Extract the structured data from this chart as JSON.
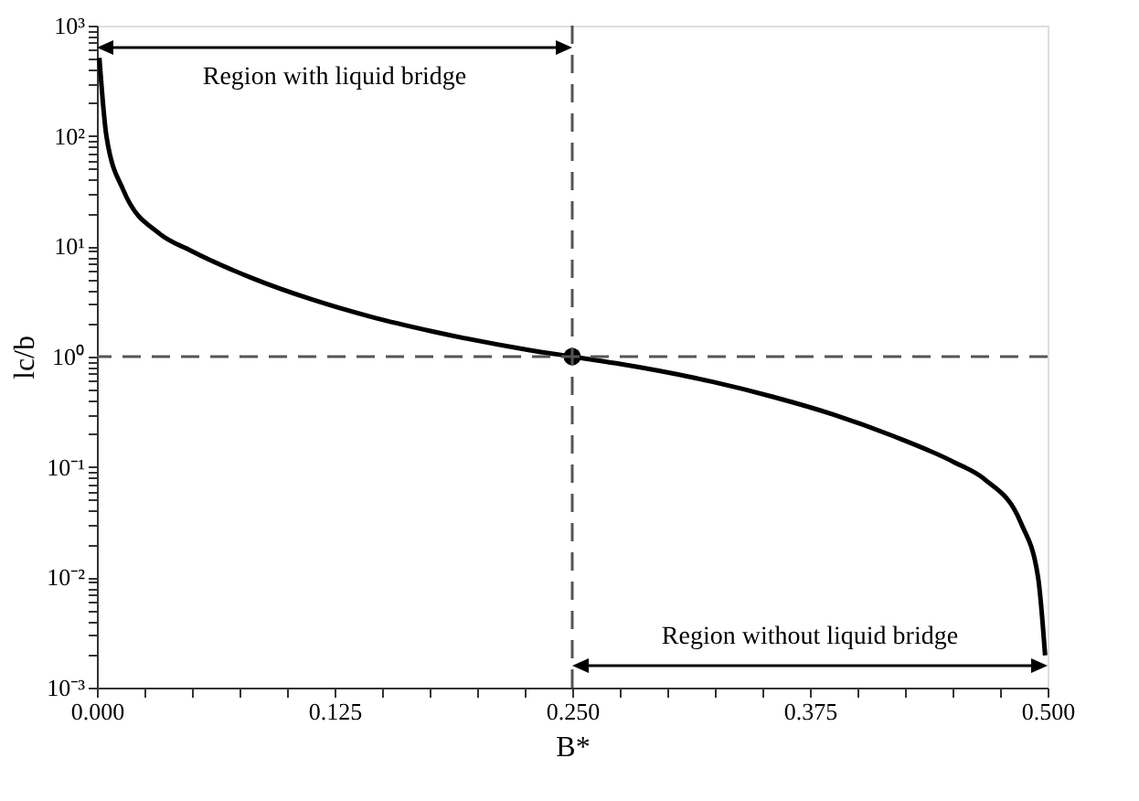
{
  "chart_data": {
    "type": "line",
    "xlabel": "B*",
    "ylabel": "lc/b",
    "log": "y",
    "grid": false,
    "xlim": [
      0,
      0.5
    ],
    "xticks": [
      {
        "value": 0,
        "label": "0.000"
      },
      {
        "value": 0.025,
        "label": null
      },
      {
        "value": 0.05,
        "label": null
      },
      {
        "value": 0.075,
        "label": null
      },
      {
        "value": 0.1,
        "label": null
      },
      {
        "value": 0.125,
        "label": "0.125"
      },
      {
        "value": 0.15,
        "label": null
      },
      {
        "value": 0.175,
        "label": null
      },
      {
        "value": 0.2,
        "label": null
      },
      {
        "value": 0.225,
        "label": null
      },
      {
        "value": 0.25,
        "label": "0.250"
      },
      {
        "value": 0.275,
        "label": null
      },
      {
        "value": 0.3,
        "label": null
      },
      {
        "value": 0.325,
        "label": null
      },
      {
        "value": 0.35,
        "label": null
      },
      {
        "value": 0.375,
        "label": "0.375"
      },
      {
        "value": 0.4,
        "label": null
      },
      {
        "value": 0.425,
        "label": null
      },
      {
        "value": 0.45,
        "label": null
      },
      {
        "value": 0.475,
        "label": null
      },
      {
        "value": 0.5,
        "label": "0.500"
      }
    ],
    "ylim": [
      0.001,
      1000
    ],
    "yticks": [
      {
        "value": 0.001,
        "label": "10⁻³"
      },
      {
        "value": 0.002,
        "label": null
      },
      {
        "value": 0.003,
        "label": null
      },
      {
        "value": 0.004,
        "label": null
      },
      {
        "value": 0.005,
        "label": null
      },
      {
        "value": 0.006,
        "label": null
      },
      {
        "value": 0.007,
        "label": null
      },
      {
        "value": 0.008,
        "label": null
      },
      {
        "value": 0.009,
        "label": null
      },
      {
        "value": 0.01,
        "label": "10⁻²"
      },
      {
        "value": 0.02,
        "label": null
      },
      {
        "value": 0.03,
        "label": null
      },
      {
        "value": 0.04,
        "label": null
      },
      {
        "value": 0.05,
        "label": null
      },
      {
        "value": 0.06,
        "label": null
      },
      {
        "value": 0.07,
        "label": null
      },
      {
        "value": 0.08,
        "label": null
      },
      {
        "value": 0.09,
        "label": null
      },
      {
        "value": 0.1,
        "label": "10⁻¹"
      },
      {
        "value": 0.2,
        "label": null
      },
      {
        "value": 0.3,
        "label": null
      },
      {
        "value": 0.4,
        "label": null
      },
      {
        "value": 0.5,
        "label": null
      },
      {
        "value": 0.6,
        "label": null
      },
      {
        "value": 0.7,
        "label": null
      },
      {
        "value": 0.8,
        "label": null
      },
      {
        "value": 0.9,
        "label": null
      },
      {
        "value": 1,
        "label": "10⁰"
      },
      {
        "value": 2,
        "label": null
      },
      {
        "value": 3,
        "label": null
      },
      {
        "value": 4,
        "label": null
      },
      {
        "value": 5,
        "label": null
      },
      {
        "value": 6,
        "label": null
      },
      {
        "value": 7,
        "label": null
      },
      {
        "value": 8,
        "label": null
      },
      {
        "value": 9,
        "label": null
      },
      {
        "value": 10,
        "label": "10¹"
      },
      {
        "value": 20,
        "label": null
      },
      {
        "value": 30,
        "label": null
      },
      {
        "value": 40,
        "label": null
      },
      {
        "value": 50,
        "label": null
      },
      {
        "value": 60,
        "label": null
      },
      {
        "value": 70,
        "label": null
      },
      {
        "value": 80,
        "label": null
      },
      {
        "value": 90,
        "label": null
      },
      {
        "value": 100,
        "label": "10²"
      },
      {
        "value": 200,
        "label": null
      },
      {
        "value": 300,
        "label": null
      },
      {
        "value": 400,
        "label": null
      },
      {
        "value": 500,
        "label": null
      },
      {
        "value": 600,
        "label": null
      },
      {
        "value": 700,
        "label": null
      },
      {
        "value": 800,
        "label": null
      },
      {
        "value": 900,
        "label": null
      },
      {
        "value": 1000,
        "label": "10³"
      }
    ],
    "series": [
      {
        "color": "#000000",
        "line_style": "solid",
        "marker": "none",
        "x": [
          0.0013,
          0.005,
          0.014,
          0.033,
          0.049,
          0.081,
          0.113,
          0.144,
          0.176,
          0.227,
          0.25,
          0.273,
          0.324,
          0.356,
          0.387,
          0.419,
          0.451,
          0.467,
          0.486,
          0.495,
          0.4987
        ],
        "values": [
          510,
          100,
          32,
          13,
          9.2,
          5.2,
          3.3,
          2.3,
          1.7,
          1.15,
          1,
          0.87,
          0.59,
          0.43,
          0.3,
          0.19,
          0.11,
          0.077,
          0.031,
          0.01,
          0.00196
        ]
      },
      {
        "type": "scatter",
        "color": "#000000",
        "marker": "circle",
        "x": [
          0.25
        ],
        "values": [
          1
        ]
      }
    ],
    "ref_lines": [
      {
        "axis": "x",
        "value": 0.25,
        "color": "#555555",
        "line_style": "dashed"
      },
      {
        "axis": "y",
        "value": 1,
        "color": "#555555",
        "line_style": "dashed"
      }
    ],
    "annotations": [
      "Region with liquid bridge",
      "Region without liquid bridge"
    ]
  }
}
